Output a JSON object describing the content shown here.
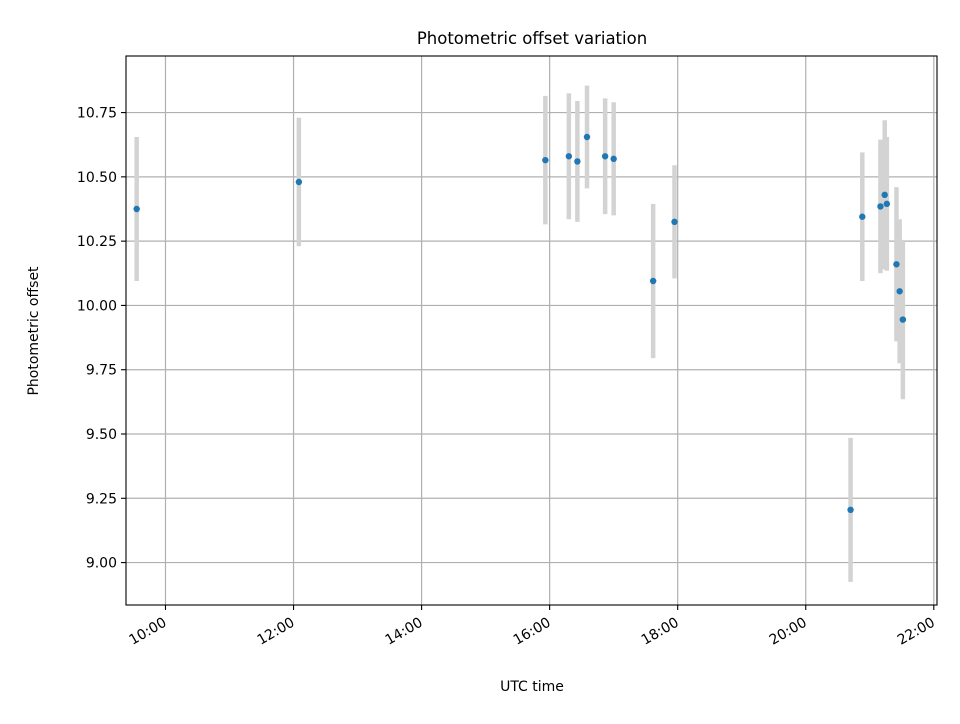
{
  "chart_data": {
    "type": "scatter",
    "title": "Photometric offset variation",
    "xlabel": "UTC time",
    "ylabel": "Photometric offset",
    "xlim": [
      "09:23",
      "22:03"
    ],
    "ylim": [
      8.835,
      10.97
    ],
    "grid": true,
    "x_ticks": [
      "10:00",
      "12:00",
      "14:00",
      "16:00",
      "18:00",
      "20:00",
      "22:00"
    ],
    "y_ticks": [
      "9.00",
      "9.25",
      "9.50",
      "9.75",
      "10.00",
      "10.25",
      "10.50",
      "10.75"
    ],
    "colors": {
      "point": "#1f77b4",
      "errorbar": "#d3d3d3",
      "grid": "#b0b0b0"
    },
    "series": [
      {
        "x": [
          "09:33",
          "12:05",
          "15:56",
          "16:18",
          "16:26",
          "16:35",
          "16:52",
          "17:00",
          "17:37",
          "17:57",
          "20:42",
          "20:53",
          "21:10",
          "21:14",
          "21:16",
          "21:25",
          "21:28",
          "21:31"
        ],
        "y": [
          10.375,
          10.48,
          10.565,
          10.58,
          10.56,
          10.655,
          10.58,
          10.57,
          10.095,
          10.325,
          9.205,
          10.345,
          10.385,
          10.43,
          10.395,
          10.16,
          10.055,
          9.945
        ],
        "yerr": [
          0.28,
          0.25,
          0.25,
          0.245,
          0.235,
          0.2,
          0.225,
          0.22,
          0.3,
          0.22,
          0.28,
          0.25,
          0.26,
          0.29,
          0.26,
          0.3,
          0.28,
          0.31
        ]
      }
    ]
  }
}
